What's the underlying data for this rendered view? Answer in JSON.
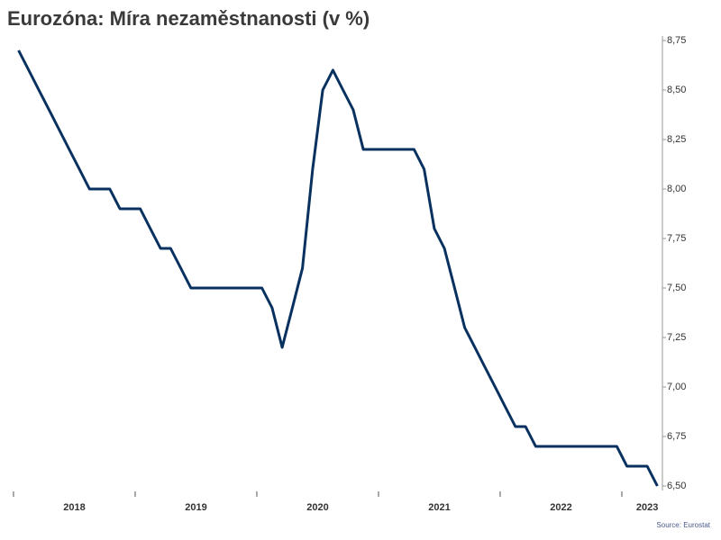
{
  "chart_data": {
    "type": "line",
    "title": "Eurozóna: Míra nezaměstnanosti (v %)",
    "source": "Source: Eurostat",
    "categories": [
      null,
      null,
      null,
      null,
      null,
      null,
      "2018",
      null,
      null,
      null,
      null,
      null,
      null,
      null,
      null,
      null,
      null,
      null,
      "2019",
      null,
      null,
      null,
      null,
      null,
      null,
      null,
      null,
      null,
      null,
      null,
      "2020",
      null,
      null,
      null,
      null,
      null,
      null,
      null,
      null,
      null,
      null,
      null,
      "2021",
      null,
      null,
      null,
      null,
      null,
      null,
      null,
      null,
      null,
      null,
      null,
      "2022",
      null,
      null,
      null,
      null,
      null,
      null,
      null,
      "2023",
      null
    ],
    "series": [
      {
        "name": "Míra nezaměstnanosti",
        "color": "#08315f",
        "values": [
          8.7,
          8.6,
          8.5,
          8.4,
          8.3,
          8.2,
          8.1,
          8.0,
          8.0,
          8.0,
          7.9,
          7.9,
          7.9,
          7.8,
          7.7,
          7.7,
          7.6,
          7.5,
          7.5,
          7.5,
          7.5,
          7.5,
          7.5,
          7.5,
          7.5,
          7.4,
          7.2,
          7.4,
          7.6,
          8.1,
          8.5,
          8.6,
          8.5,
          8.4,
          8.2,
          8.2,
          8.2,
          8.2,
          8.2,
          8.2,
          8.1,
          7.8,
          7.7,
          7.5,
          7.3,
          7.2,
          7.1,
          7.0,
          6.9,
          6.8,
          6.8,
          6.7,
          6.7,
          6.7,
          6.7,
          6.7,
          6.7,
          6.7,
          6.7,
          6.7,
          6.6,
          6.6,
          6.6,
          6.5
        ]
      }
    ],
    "ylim": [
      6.5,
      8.75
    ],
    "yticks": [
      {
        "value": 6.5,
        "label": "6,50"
      },
      {
        "value": 6.75,
        "label": "6,75"
      },
      {
        "value": 7.0,
        "label": "7,00"
      },
      {
        "value": 7.25,
        "label": "7,25"
      },
      {
        "value": 7.5,
        "label": "7,50"
      },
      {
        "value": 7.75,
        "label": "7,75"
      },
      {
        "value": 8.0,
        "label": "8,00"
      },
      {
        "value": 8.25,
        "label": "8,25"
      },
      {
        "value": 8.5,
        "label": "8,50"
      },
      {
        "value": 8.75,
        "label": "8,75"
      }
    ],
    "grid": false
  }
}
